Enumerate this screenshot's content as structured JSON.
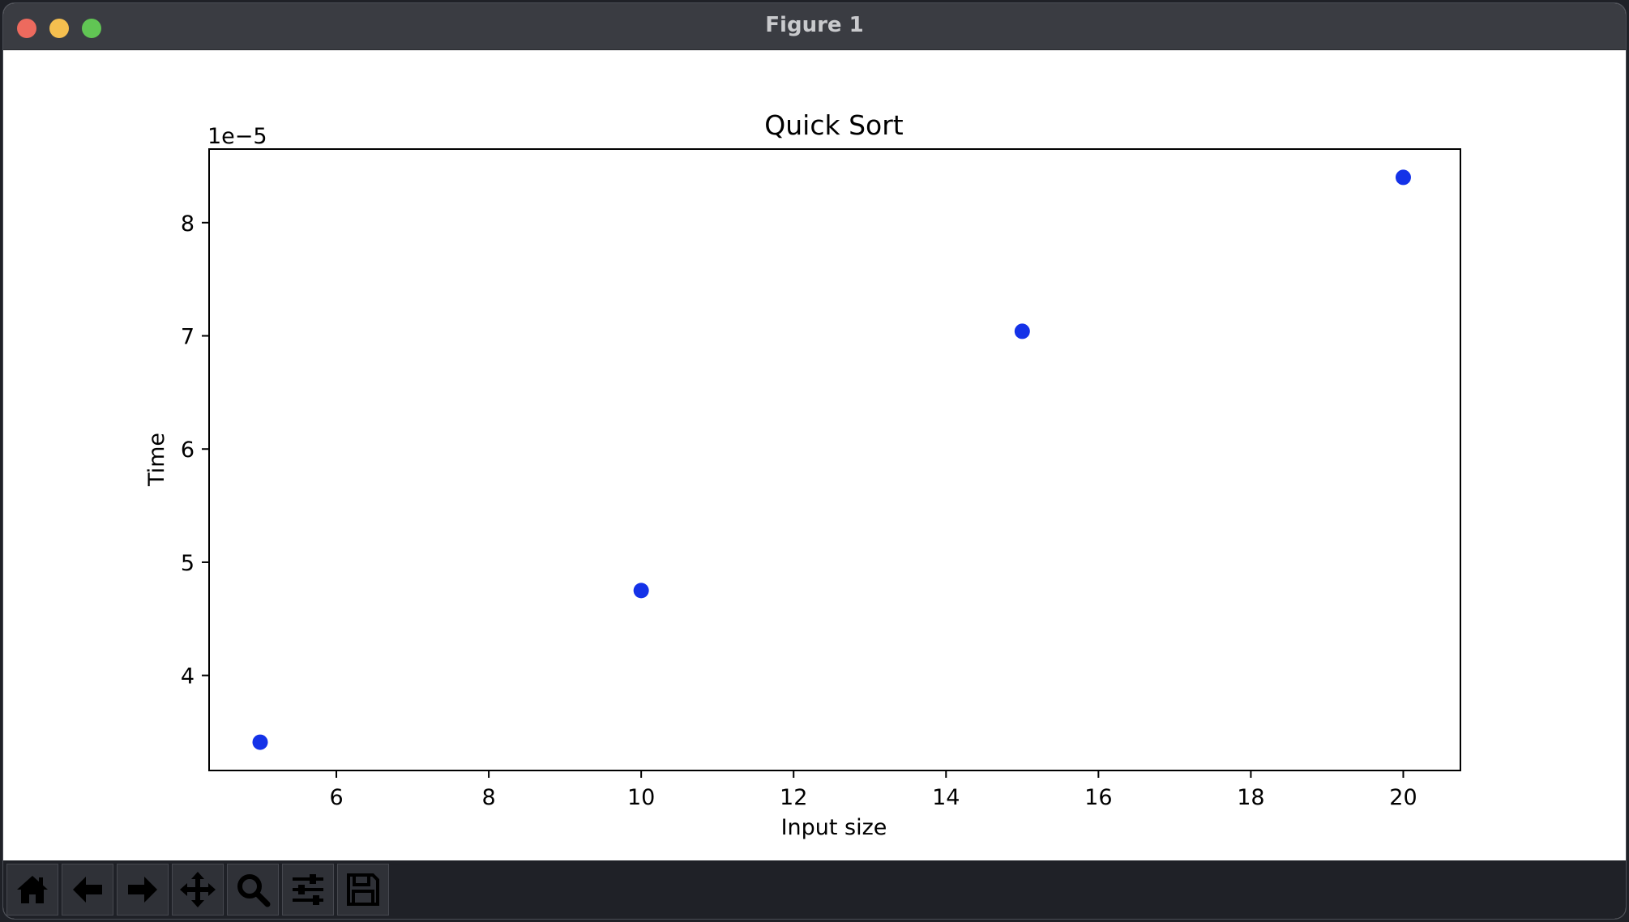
{
  "window": {
    "title": "Figure 1"
  },
  "toolbar": {
    "tools": [
      {
        "name": "home-button",
        "icon": "home-icon"
      },
      {
        "name": "back-button",
        "icon": "arrow-left-icon"
      },
      {
        "name": "forward-button",
        "icon": "arrow-right-icon"
      },
      {
        "name": "pan-button",
        "icon": "move-icon"
      },
      {
        "name": "zoom-button",
        "icon": "magnifier-icon"
      },
      {
        "name": "configure-subplots-button",
        "icon": "sliders-icon"
      },
      {
        "name": "save-button",
        "icon": "floppy-disk-icon"
      }
    ]
  },
  "chart_data": {
    "type": "scatter",
    "title": "Quick Sort",
    "xlabel": "Input size",
    "ylabel": "Time",
    "y_offset_label": "1e−5",
    "x": [
      5,
      10,
      15,
      20
    ],
    "y": [
      3.41e-05,
      4.75e-05,
      7.04e-05,
      8.4e-05
    ],
    "xlim": [
      4.33,
      20.75
    ],
    "ylim": [
      3.16e-05,
      8.65e-05
    ],
    "x_ticks": [
      6,
      8,
      10,
      12,
      14,
      16,
      18,
      20
    ],
    "x_tick_labels": [
      "6",
      "8",
      "10",
      "12",
      "14",
      "16",
      "18",
      "20"
    ],
    "y_ticks": [
      4e-05,
      5e-05,
      6e-05,
      7e-05,
      8e-05
    ],
    "y_tick_labels": [
      "4",
      "5",
      "6",
      "7",
      "8"
    ],
    "grid": false,
    "marker_color": "#1432e8"
  }
}
